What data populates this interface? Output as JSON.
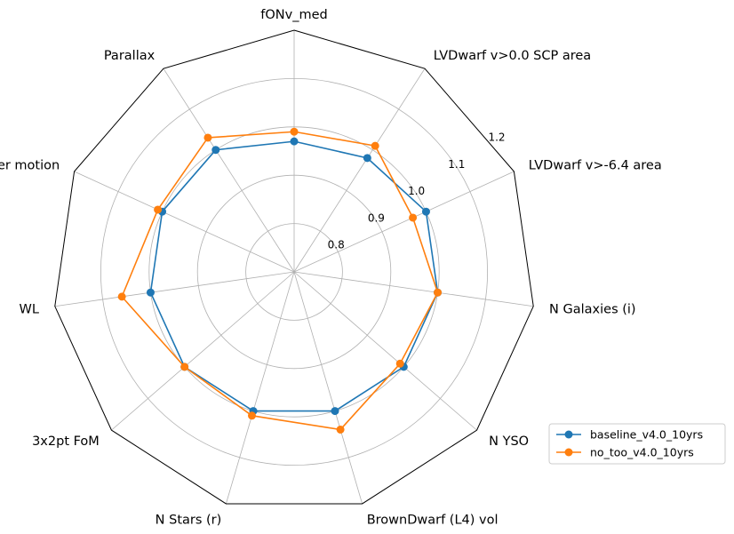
{
  "chart_data": {
    "type": "radar",
    "categories": [
      "fONv_med",
      "LVDwarf v>0.0 SCP area",
      "LVDwarf v>-6.4 area",
      "N Galaxies (i)",
      "N YSO",
      "BrownDwarf (L4) vol",
      "N Stars (r)",
      "3x2pt FoM",
      "WL",
      "Proper motion",
      "Parallax"
    ],
    "radial_ticks": [
      0.8,
      0.9,
      1.0,
      1.1,
      1.2
    ],
    "rlim": [
      0.7,
      1.2
    ],
    "grid": true,
    "series": [
      {
        "name": "baseline_v4.0_10yrs",
        "color": "#1f77b4",
        "values": [
          0.97,
          0.98,
          1.0,
          1.0,
          1.0,
          1.0,
          1.0,
          1.0,
          1.0,
          1.0,
          1.0
        ]
      },
      {
        "name": "no_too_v4.0_10yrs",
        "color": "#ff7f0e",
        "values": [
          0.99,
          1.01,
          0.97,
          1.0,
          0.99,
          1.04,
          1.01,
          1.0,
          1.06,
          1.01,
          1.03
        ]
      }
    ],
    "legend_position": "lower-right-outside"
  }
}
